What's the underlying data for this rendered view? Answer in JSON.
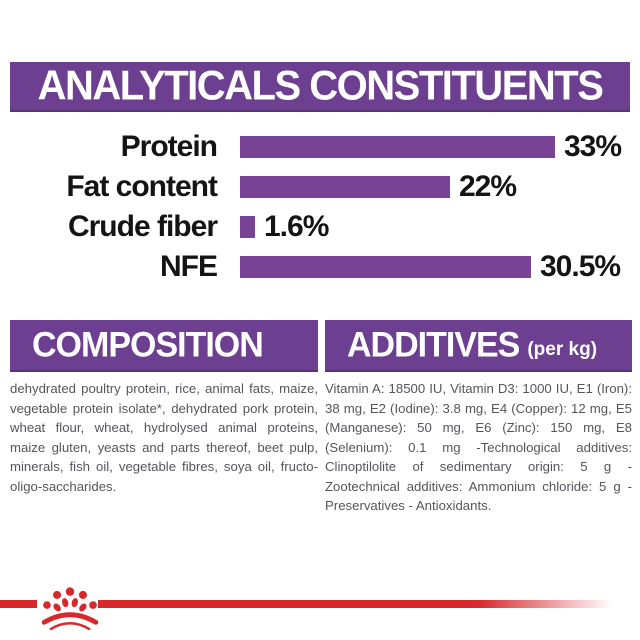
{
  "header": {
    "title": "ANALYTICALS CONSTITUENTS"
  },
  "chart_data": {
    "type": "bar",
    "orientation": "horizontal",
    "title": "ANALYTICALS CONSTITUENTS",
    "categories": [
      "Protein",
      "Fat content",
      "Crude fiber",
      "NFE"
    ],
    "values": [
      33,
      22,
      1.6,
      30.5
    ],
    "value_labels": [
      "33%",
      "22%",
      "1.6%",
      "30.5%"
    ],
    "unit": "%",
    "xlim": [
      0,
      35
    ],
    "grid": false,
    "legend": false,
    "bar_color": "#7a4496"
  },
  "sections": {
    "composition": {
      "title": "COMPOSITION",
      "body": "dehydrated poultry protein, rice, animal fats, maize, vegetable protein isolate*, dehydrated pork protein, wheat flour, wheat, hydrolysed animal proteins, maize gluten, yeasts and parts thereof, beet pulp, minerals, fish oil, vegetable fibres, soya oil, fructo-oligo-saccharides."
    },
    "additives": {
      "title": "ADDITIVES",
      "title_suffix": "(per kg)",
      "body": "Vitamin A: 18500 IU, Vitamin D3: 1000 IU, E1 (Iron): 38 mg, E2 (Iodine): 3.8 mg, E4 (Copper): 12 mg, E5 (Manganese): 50 mg, E6 (Zinc): 150 mg, E8 (Selenium): 0.1 mg -Technological additives: Clinoptilolite of sedimentary origin: 5 g - Zootechnical additives: Ammonium chloride: 5 g - Preservatives - Antioxidants."
    }
  },
  "footer": {
    "logo": "royal-canin-crown"
  },
  "colors": {
    "banner_purple": "#6d3f91",
    "bar_purple": "#7a4496",
    "brand_red": "#d7282c",
    "text_dark": "#141414",
    "text_gray": "#54565c"
  }
}
